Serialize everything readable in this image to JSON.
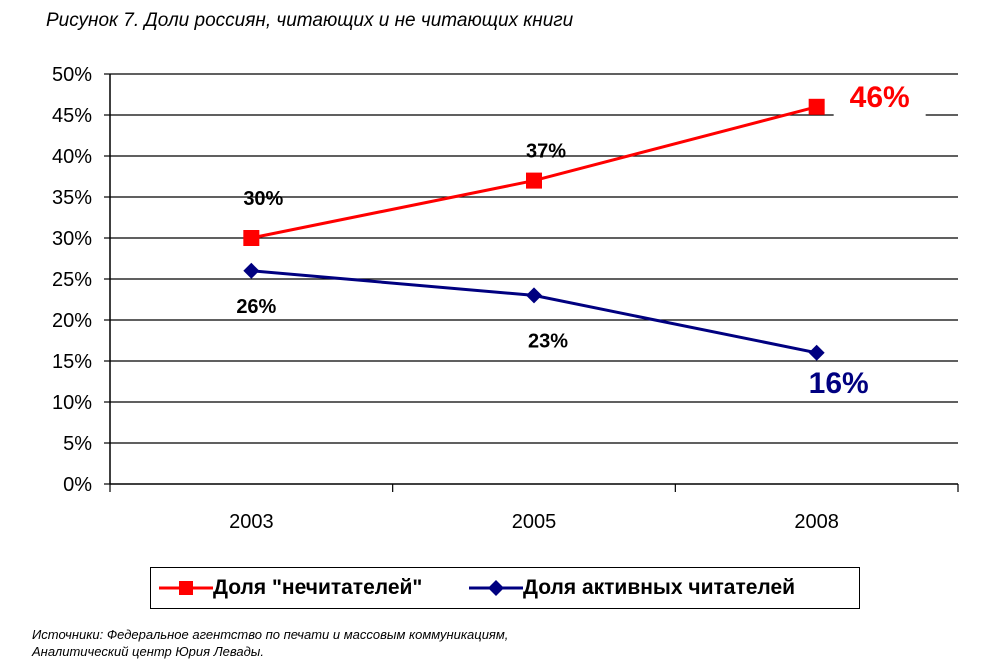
{
  "chart_data": {
    "type": "line",
    "title": "Рисунок 7. Доли россиян, читающих и не читающих книги",
    "categories": [
      "2003",
      "2005",
      "2008"
    ],
    "ylim": [
      0,
      50
    ],
    "y_ticks": [
      "0%",
      "5%",
      "10%",
      "15%",
      "20%",
      "25%",
      "30%",
      "35%",
      "40%",
      "45%",
      "50%"
    ],
    "grid": true,
    "legend_position": "bottom",
    "series": [
      {
        "name": "Доля \"нечитателей\"",
        "values": [
          30,
          37,
          46
        ],
        "labels": [
          "30%",
          "37%",
          "46%"
        ],
        "color": "#ff0000",
        "marker": "square"
      },
      {
        "name": "Доля активных читателей",
        "values": [
          26,
          23,
          16
        ],
        "labels": [
          "26%",
          "23%",
          "16%"
        ],
        "color": "#000080",
        "marker": "diamond"
      }
    ]
  },
  "source": {
    "line1": "Источники: Федеральное агентство по печати и массовым коммуникациям,",
    "line2": "Аналитический центр Юрия Левады."
  }
}
